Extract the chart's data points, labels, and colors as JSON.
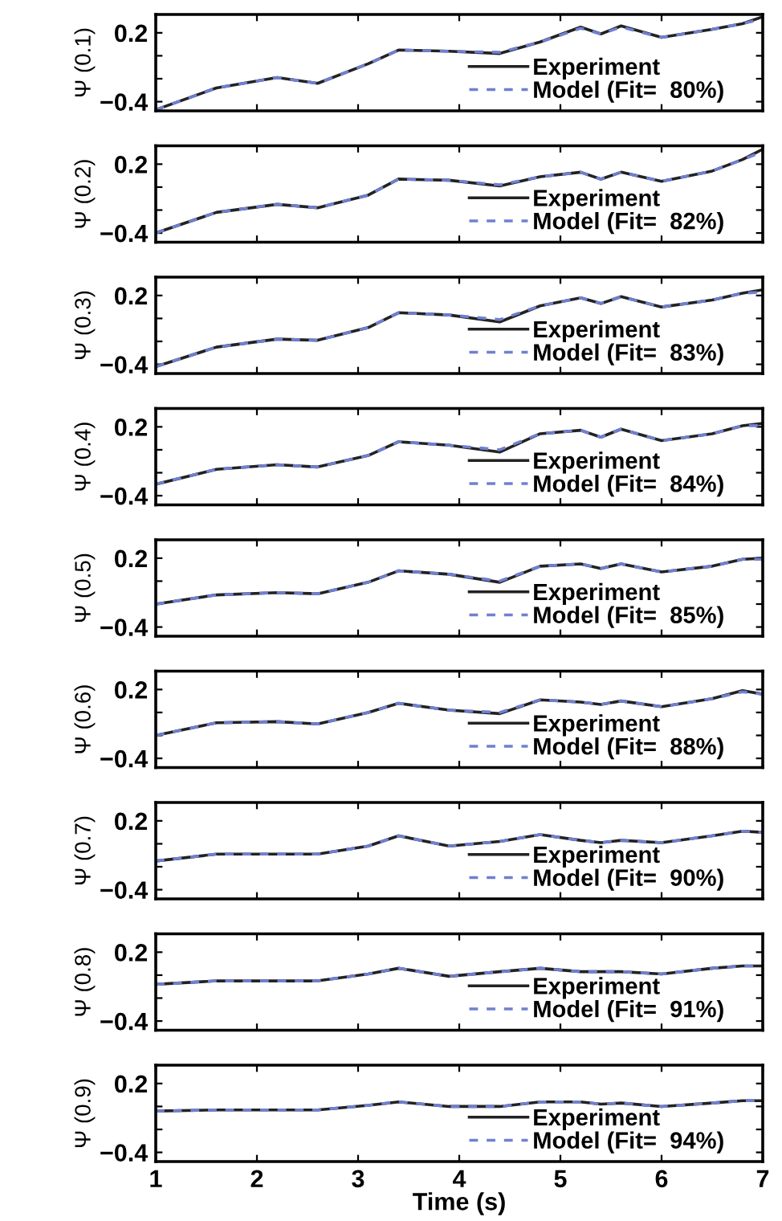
{
  "chart_data": [
    {
      "type": "line",
      "ylabel": "Ψ (0.1)",
      "x": [
        1,
        1.6,
        2.2,
        2.6,
        3.1,
        3.4,
        3.9,
        4.4,
        4.8,
        5.2,
        5.4,
        5.6,
        6.0,
        6.5,
        6.8,
        7.0
      ],
      "xlim": [
        1,
        7
      ],
      "xticks": [
        {
          "value": 1,
          "label": null
        },
        {
          "value": 2,
          "label": null
        },
        {
          "value": 3,
          "label": null
        },
        {
          "value": 4,
          "label": null
        },
        {
          "value": 5,
          "label": null
        },
        {
          "value": 6,
          "label": null
        },
        {
          "value": 7,
          "label": null
        }
      ],
      "ylim": [
        -0.48,
        0.36
      ],
      "yticks": [
        {
          "value": -0.4,
          "label": "−0.4"
        },
        {
          "value": -0.2,
          "label": null
        },
        {
          "value": 0,
          "label": null
        },
        {
          "value": 0.2,
          "label": "0.2"
        }
      ],
      "tick_labels": "y",
      "legend": "bottom right",
      "series": [
        {
          "name": "Experiment",
          "color": "#222222",
          "line_style": "solid",
          "values": [
            -0.47,
            -0.28,
            -0.19,
            -0.24,
            -0.07,
            0.05,
            0.04,
            0.02,
            0.12,
            0.25,
            0.19,
            0.26,
            0.16,
            0.23,
            0.28,
            0.34
          ]
        },
        {
          "name": "Model (Fit=  80%)",
          "color": "#7080d0",
          "line_style": "dashed",
          "values": [
            -0.47,
            -0.28,
            -0.19,
            -0.24,
            -0.07,
            0.05,
            0.04,
            0.03,
            0.12,
            0.24,
            0.19,
            0.25,
            0.16,
            0.23,
            0.28,
            0.32
          ]
        }
      ]
    },
    {
      "type": "line",
      "ylabel": "Ψ (0.2)",
      "x": [
        1,
        1.6,
        2.2,
        2.6,
        3.1,
        3.4,
        3.9,
        4.4,
        4.8,
        5.2,
        5.4,
        5.6,
        6.0,
        6.5,
        6.8,
        7.0
      ],
      "xlim": [
        1,
        7
      ],
      "xticks": [
        {
          "value": 1,
          "label": null
        },
        {
          "value": 2,
          "label": null
        },
        {
          "value": 3,
          "label": null
        },
        {
          "value": 4,
          "label": null
        },
        {
          "value": 5,
          "label": null
        },
        {
          "value": 6,
          "label": null
        },
        {
          "value": 7,
          "label": null
        }
      ],
      "ylim": [
        -0.48,
        0.36
      ],
      "yticks": [
        {
          "value": -0.4,
          "label": "−0.4"
        },
        {
          "value": -0.2,
          "label": null
        },
        {
          "value": 0,
          "label": null
        },
        {
          "value": 0.2,
          "label": "0.2"
        }
      ],
      "tick_labels": "y",
      "legend": "bottom right",
      "series": [
        {
          "name": "Experiment",
          "color": "#222222",
          "line_style": "solid",
          "values": [
            -0.4,
            -0.22,
            -0.15,
            -0.18,
            -0.07,
            0.07,
            0.06,
            0.01,
            0.09,
            0.13,
            0.07,
            0.13,
            0.05,
            0.14,
            0.24,
            0.33
          ]
        },
        {
          "name": "Model (Fit=  82%)",
          "color": "#7080d0",
          "line_style": "dashed",
          "values": [
            -0.4,
            -0.22,
            -0.15,
            -0.18,
            -0.07,
            0.07,
            0.06,
            0.02,
            0.09,
            0.13,
            0.07,
            0.13,
            0.05,
            0.14,
            0.24,
            0.31
          ]
        }
      ]
    },
    {
      "type": "line",
      "ylabel": "Ψ (0.3)",
      "x": [
        1,
        1.6,
        2.2,
        2.6,
        3.1,
        3.4,
        3.9,
        4.4,
        4.8,
        5.2,
        5.4,
        5.6,
        6.0,
        6.5,
        6.8,
        7.0
      ],
      "xlim": [
        1,
        7
      ],
      "xticks": [
        {
          "value": 1,
          "label": null
        },
        {
          "value": 2,
          "label": null
        },
        {
          "value": 3,
          "label": null
        },
        {
          "value": 4,
          "label": null
        },
        {
          "value": 5,
          "label": null
        },
        {
          "value": 6,
          "label": null
        },
        {
          "value": 7,
          "label": null
        }
      ],
      "ylim": [
        -0.48,
        0.36
      ],
      "yticks": [
        {
          "value": -0.4,
          "label": "−0.4"
        },
        {
          "value": -0.2,
          "label": null
        },
        {
          "value": 0,
          "label": null
        },
        {
          "value": 0.2,
          "label": "0.2"
        }
      ],
      "tick_labels": "y",
      "legend": "bottom right",
      "series": [
        {
          "name": "Experiment",
          "color": "#222222",
          "line_style": "solid",
          "values": [
            -0.42,
            -0.25,
            -0.18,
            -0.19,
            -0.08,
            0.05,
            0.03,
            -0.03,
            0.11,
            0.18,
            0.13,
            0.19,
            0.1,
            0.16,
            0.22,
            0.25
          ]
        },
        {
          "name": "Model (Fit=  83%)",
          "color": "#7080d0",
          "line_style": "dashed",
          "values": [
            -0.42,
            -0.25,
            -0.18,
            -0.19,
            -0.08,
            0.05,
            0.03,
            -0.01,
            0.11,
            0.18,
            0.13,
            0.19,
            0.1,
            0.16,
            0.22,
            0.23
          ]
        }
      ]
    },
    {
      "type": "line",
      "ylabel": "Ψ (0.4)",
      "x": [
        1,
        1.6,
        2.2,
        2.6,
        3.1,
        3.4,
        3.9,
        4.4,
        4.8,
        5.2,
        5.4,
        5.6,
        6.0,
        6.5,
        6.8,
        7.0
      ],
      "xlim": [
        1,
        7
      ],
      "xticks": [
        {
          "value": 1,
          "label": null
        },
        {
          "value": 2,
          "label": null
        },
        {
          "value": 3,
          "label": null
        },
        {
          "value": 4,
          "label": null
        },
        {
          "value": 5,
          "label": null
        },
        {
          "value": 6,
          "label": null
        },
        {
          "value": 7,
          "label": null
        }
      ],
      "ylim": [
        -0.48,
        0.36
      ],
      "yticks": [
        {
          "value": -0.4,
          "label": "−0.4"
        },
        {
          "value": -0.2,
          "label": null
        },
        {
          "value": 0,
          "label": null
        },
        {
          "value": 0.2,
          "label": "0.2"
        }
      ],
      "tick_labels": "y",
      "legend": "bottom right",
      "series": [
        {
          "name": "Experiment",
          "color": "#222222",
          "line_style": "solid",
          "values": [
            -0.3,
            -0.17,
            -0.13,
            -0.15,
            -0.05,
            0.07,
            0.04,
            -0.02,
            0.14,
            0.17,
            0.11,
            0.18,
            0.08,
            0.14,
            0.21,
            0.23
          ]
        },
        {
          "name": "Model (Fit=  84%)",
          "color": "#7080d0",
          "line_style": "dashed",
          "values": [
            -0.3,
            -0.17,
            -0.13,
            -0.15,
            -0.05,
            0.07,
            0.04,
            0.0,
            0.14,
            0.17,
            0.11,
            0.18,
            0.08,
            0.14,
            0.21,
            0.21
          ]
        }
      ]
    },
    {
      "type": "line",
      "ylabel": "Ψ (0.5)",
      "x": [
        1,
        1.6,
        2.2,
        2.6,
        3.1,
        3.4,
        3.9,
        4.4,
        4.8,
        5.2,
        5.4,
        5.6,
        6.0,
        6.5,
        6.8,
        7.0
      ],
      "xlim": [
        1,
        7
      ],
      "xticks": [
        {
          "value": 1,
          "label": null
        },
        {
          "value": 2,
          "label": null
        },
        {
          "value": 3,
          "label": null
        },
        {
          "value": 4,
          "label": null
        },
        {
          "value": 5,
          "label": null
        },
        {
          "value": 6,
          "label": null
        },
        {
          "value": 7,
          "label": null
        }
      ],
      "ylim": [
        -0.48,
        0.36
      ],
      "yticks": [
        {
          "value": -0.4,
          "label": "−0.4"
        },
        {
          "value": -0.2,
          "label": null
        },
        {
          "value": 0,
          "label": null
        },
        {
          "value": 0.2,
          "label": "0.2"
        }
      ],
      "tick_labels": "y",
      "legend": "bottom right",
      "series": [
        {
          "name": "Experiment",
          "color": "#222222",
          "line_style": "solid",
          "values": [
            -0.2,
            -0.12,
            -0.1,
            -0.11,
            -0.01,
            0.09,
            0.06,
            -0.01,
            0.13,
            0.15,
            0.11,
            0.15,
            0.08,
            0.13,
            0.19,
            0.2
          ]
        },
        {
          "name": "Model (Fit=  85%)",
          "color": "#7080d0",
          "line_style": "dashed",
          "values": [
            -0.2,
            -0.12,
            -0.1,
            -0.11,
            -0.01,
            0.09,
            0.06,
            0.0,
            0.13,
            0.15,
            0.11,
            0.15,
            0.08,
            0.13,
            0.19,
            0.19
          ]
        }
      ]
    },
    {
      "type": "line",
      "ylabel": "Ψ (0.6)",
      "x": [
        1,
        1.6,
        2.2,
        2.6,
        3.1,
        3.4,
        3.9,
        4.4,
        4.8,
        5.2,
        5.4,
        5.6,
        6.0,
        6.5,
        6.8,
        7.0
      ],
      "xlim": [
        1,
        7
      ],
      "xticks": [
        {
          "value": 1,
          "label": null
        },
        {
          "value": 2,
          "label": null
        },
        {
          "value": 3,
          "label": null
        },
        {
          "value": 4,
          "label": null
        },
        {
          "value": 5,
          "label": null
        },
        {
          "value": 6,
          "label": null
        },
        {
          "value": 7,
          "label": null
        }
      ],
      "ylim": [
        -0.48,
        0.36
      ],
      "yticks": [
        {
          "value": -0.4,
          "label": "−0.4"
        },
        {
          "value": -0.2,
          "label": null
        },
        {
          "value": 0,
          "label": null
        },
        {
          "value": 0.2,
          "label": "0.2"
        }
      ],
      "tick_labels": "y",
      "legend": "bottom right",
      "series": [
        {
          "name": "Experiment",
          "color": "#222222",
          "line_style": "solid",
          "values": [
            -0.2,
            -0.09,
            -0.08,
            -0.1,
            0.0,
            0.08,
            0.02,
            -0.01,
            0.11,
            0.09,
            0.07,
            0.1,
            0.05,
            0.12,
            0.19,
            0.16
          ]
        },
        {
          "name": "Model (Fit=  88%)",
          "color": "#7080d0",
          "line_style": "dashed",
          "values": [
            -0.2,
            -0.09,
            -0.08,
            -0.1,
            0.0,
            0.08,
            0.02,
            0.0,
            0.11,
            0.09,
            0.07,
            0.1,
            0.05,
            0.12,
            0.18,
            0.16
          ]
        }
      ]
    },
    {
      "type": "line",
      "ylabel": "Ψ (0.7)",
      "x": [
        1,
        1.6,
        2.2,
        2.6,
        3.1,
        3.4,
        3.9,
        4.4,
        4.8,
        5.2,
        5.4,
        5.6,
        6.0,
        6.5,
        6.8,
        7.0
      ],
      "xlim": [
        1,
        7
      ],
      "xticks": [
        {
          "value": 1,
          "label": null
        },
        {
          "value": 2,
          "label": null
        },
        {
          "value": 3,
          "label": null
        },
        {
          "value": 4,
          "label": null
        },
        {
          "value": 5,
          "label": null
        },
        {
          "value": 6,
          "label": null
        },
        {
          "value": 7,
          "label": null
        }
      ],
      "ylim": [
        -0.48,
        0.36
      ],
      "yticks": [
        {
          "value": -0.4,
          "label": "−0.4"
        },
        {
          "value": -0.2,
          "label": null
        },
        {
          "value": 0,
          "label": null
        },
        {
          "value": 0.2,
          "label": "0.2"
        }
      ],
      "tick_labels": "y",
      "legend": "bottom right",
      "series": [
        {
          "name": "Experiment",
          "color": "#222222",
          "line_style": "solid",
          "values": [
            -0.15,
            -0.09,
            -0.09,
            -0.09,
            -0.02,
            0.07,
            -0.02,
            0.02,
            0.08,
            0.03,
            0.01,
            0.03,
            0.01,
            0.07,
            0.11,
            0.1
          ]
        },
        {
          "name": "Model (Fit=  90%)",
          "color": "#7080d0",
          "line_style": "dashed",
          "values": [
            -0.15,
            -0.09,
            -0.09,
            -0.09,
            -0.02,
            0.07,
            -0.02,
            0.02,
            0.08,
            0.03,
            0.01,
            0.03,
            0.01,
            0.07,
            0.11,
            0.1
          ]
        }
      ]
    },
    {
      "type": "line",
      "ylabel": "Ψ (0.8)",
      "x": [
        1,
        1.6,
        2.2,
        2.6,
        3.1,
        3.4,
        3.9,
        4.4,
        4.8,
        5.2,
        5.4,
        5.6,
        6.0,
        6.5,
        6.8,
        7.0
      ],
      "xlim": [
        1,
        7
      ],
      "xticks": [
        {
          "value": 1,
          "label": null
        },
        {
          "value": 2,
          "label": null
        },
        {
          "value": 3,
          "label": null
        },
        {
          "value": 4,
          "label": null
        },
        {
          "value": 5,
          "label": null
        },
        {
          "value": 6,
          "label": null
        },
        {
          "value": 7,
          "label": null
        }
      ],
      "ylim": [
        -0.48,
        0.36
      ],
      "yticks": [
        {
          "value": -0.4,
          "label": "−0.4"
        },
        {
          "value": -0.2,
          "label": null
        },
        {
          "value": 0,
          "label": null
        },
        {
          "value": 0.2,
          "label": "0.2"
        }
      ],
      "tick_labels": "y",
      "legend": "bottom right",
      "series": [
        {
          "name": "Experiment",
          "color": "#222222",
          "line_style": "solid",
          "values": [
            -0.08,
            -0.05,
            -0.05,
            -0.05,
            0.01,
            0.06,
            -0.01,
            0.03,
            0.06,
            0.03,
            0.03,
            0.03,
            0.01,
            0.06,
            0.08,
            0.08
          ]
        },
        {
          "name": "Model (Fit=  91%)",
          "color": "#7080d0",
          "line_style": "dashed",
          "values": [
            -0.08,
            -0.05,
            -0.05,
            -0.05,
            0.01,
            0.06,
            -0.01,
            0.03,
            0.06,
            0.03,
            0.03,
            0.03,
            0.01,
            0.06,
            0.08,
            0.08
          ]
        }
      ]
    },
    {
      "type": "line",
      "ylabel": "Ψ (0.9)",
      "xlabel": "Time (s)",
      "x": [
        1,
        1.6,
        2.2,
        2.6,
        3.1,
        3.4,
        3.9,
        4.4,
        4.8,
        5.2,
        5.4,
        5.6,
        6.0,
        6.5,
        6.8,
        7.0
      ],
      "xlim": [
        1,
        7
      ],
      "xticks": [
        1,
        2,
        3,
        4,
        5,
        6,
        7
      ],
      "ylim": [
        -0.48,
        0.36
      ],
      "yticks": [
        {
          "value": -0.4,
          "label": "−0.4"
        },
        {
          "value": -0.2,
          "label": null
        },
        {
          "value": 0,
          "label": null
        },
        {
          "value": 0.2,
          "label": "0.2"
        }
      ],
      "legend": "bottom right",
      "series": [
        {
          "name": "Experiment",
          "color": "#222222",
          "line_style": "solid",
          "values": [
            -0.04,
            -0.03,
            -0.03,
            -0.03,
            0.01,
            0.04,
            0.0,
            0.0,
            0.04,
            0.04,
            0.02,
            0.03,
            0.0,
            0.03,
            0.05,
            0.05
          ]
        },
        {
          "name": "Model (Fit=  94%)",
          "color": "#7080d0",
          "line_style": "dashed",
          "values": [
            -0.04,
            -0.03,
            -0.03,
            -0.03,
            0.01,
            0.04,
            0.0,
            0.0,
            0.04,
            0.04,
            0.02,
            0.03,
            0.0,
            0.03,
            0.05,
            0.05
          ]
        }
      ]
    }
  ]
}
